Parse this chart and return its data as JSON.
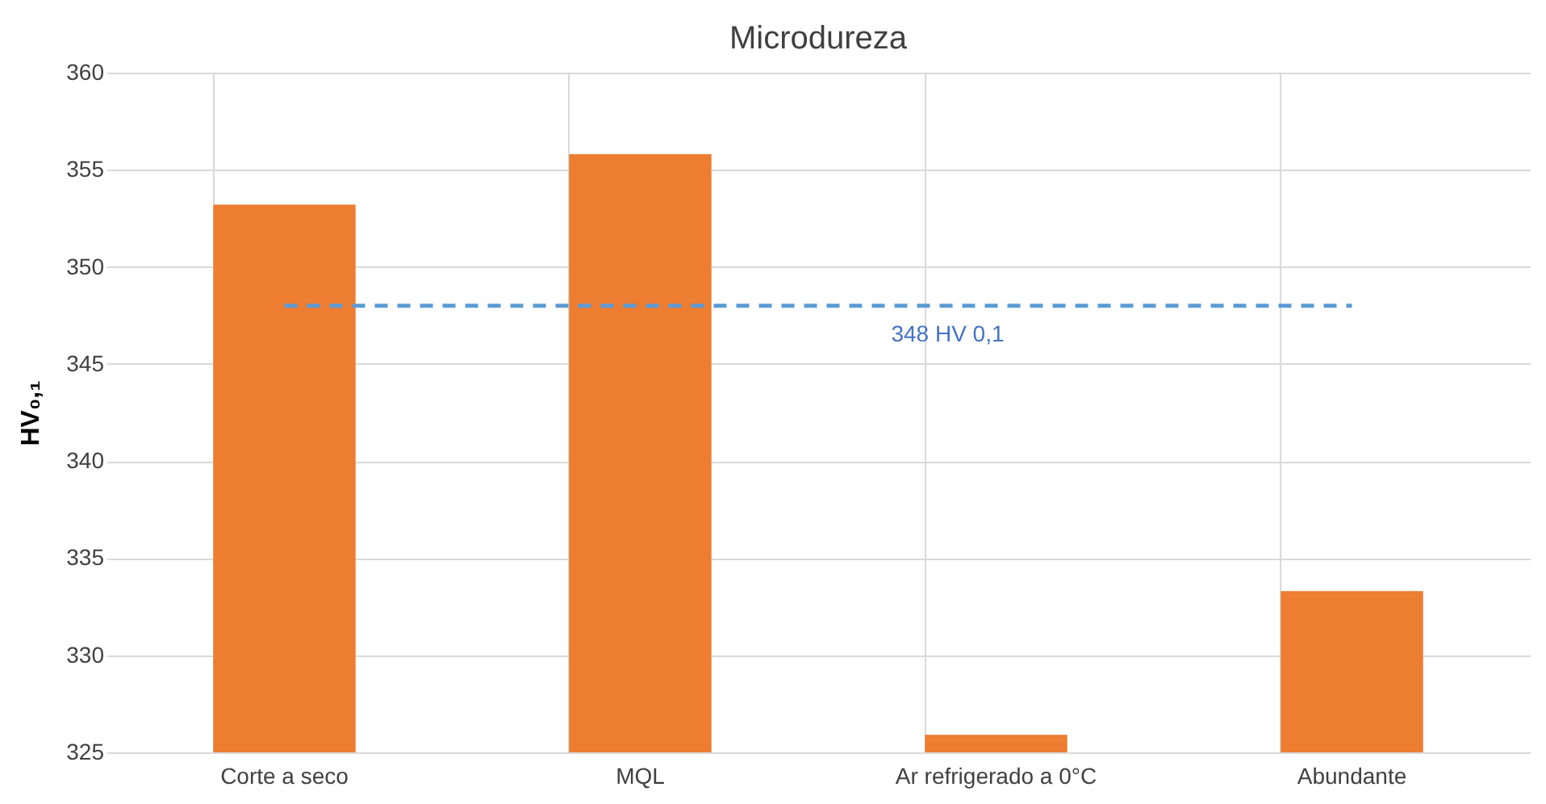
{
  "chart_data": {
    "type": "bar",
    "title": "Microdureza",
    "ylabel": "HV₀,₁",
    "categories": [
      "Corte a seco",
      "MQL",
      "Ar refrigerado a 0°C",
      "Abundante"
    ],
    "values": [
      353.2,
      355.8,
      325.9,
      333.3
    ],
    "color": "#ed7d31",
    "ylim": [
      325,
      360
    ],
    "yticks": [
      325,
      330,
      335,
      340,
      345,
      350,
      355,
      360
    ],
    "grid": true,
    "ref_lines": [
      {
        "axis": "y",
        "value": 348,
        "label": "348 HV 0,1",
        "color": "#5b9bd5",
        "line_style": "dashed"
      }
    ]
  }
}
